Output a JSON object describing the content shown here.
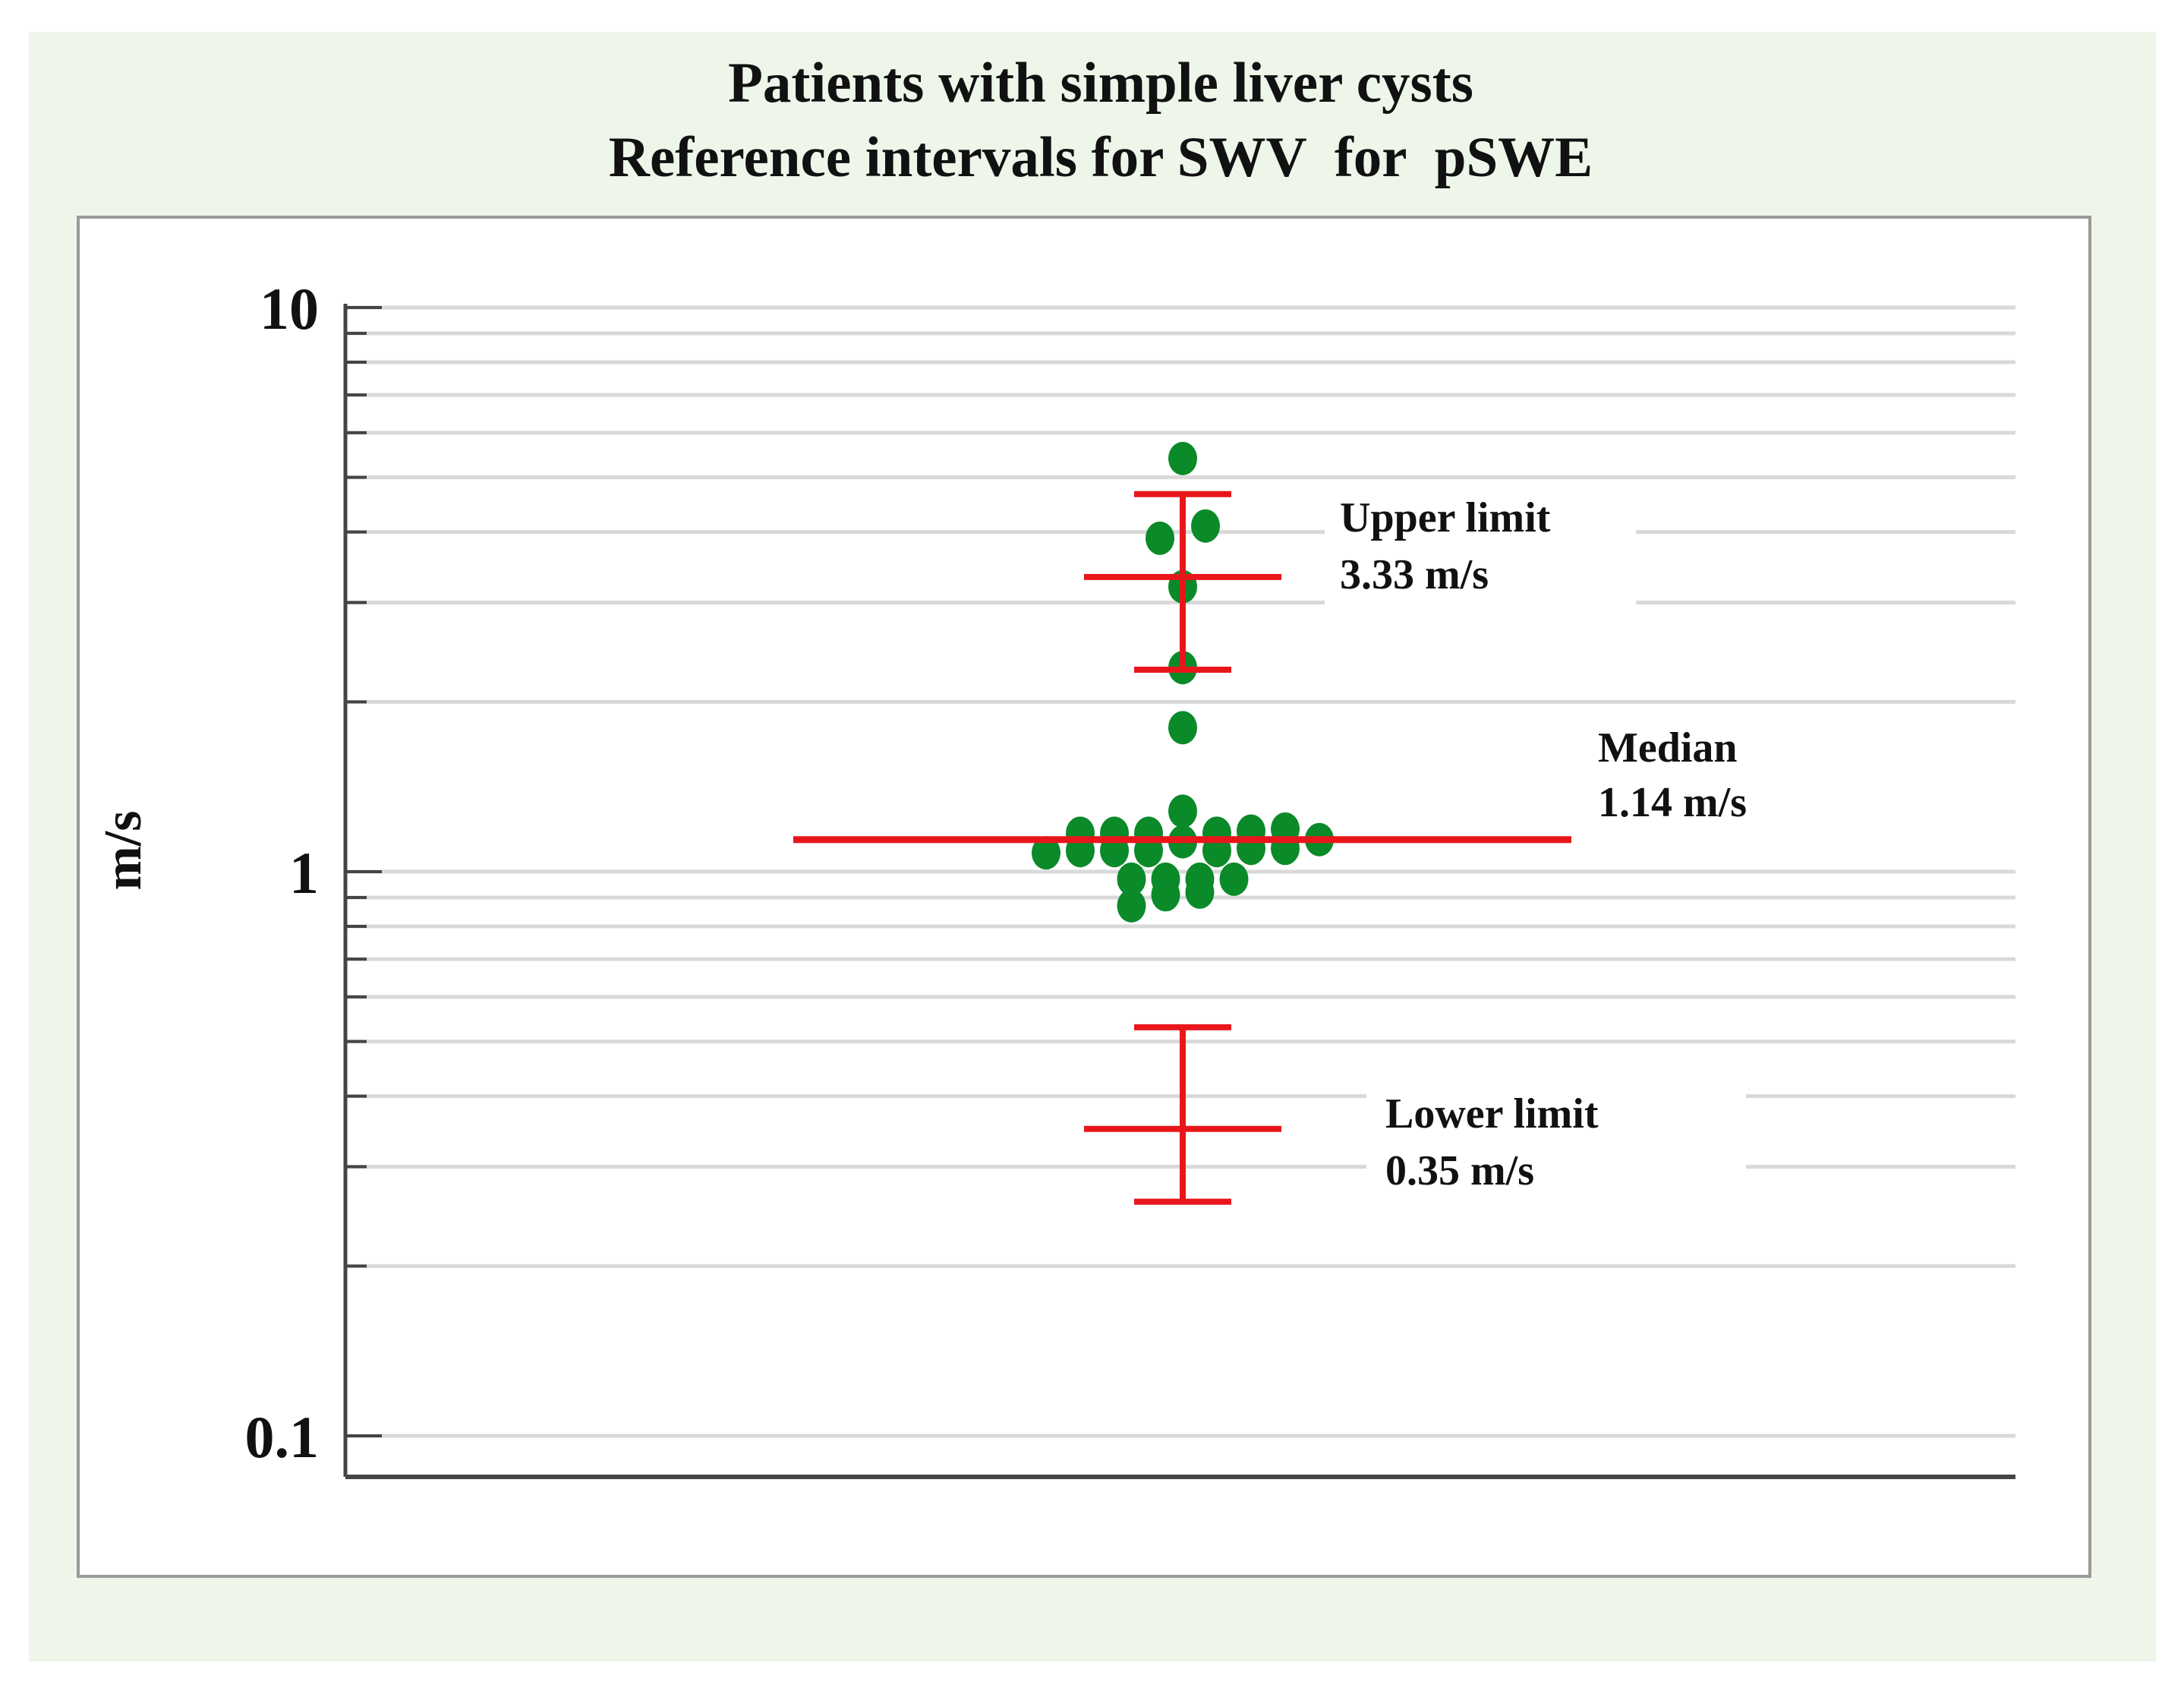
{
  "colors": {
    "background": "#ffffff",
    "frame_fill": "#edf6e9",
    "plot_fill": "#ffffff",
    "plot_border": "#9a9a9a",
    "gridline": "#d9d9d9",
    "axis": "#444444",
    "text": "#111111",
    "point": "#0b8a2a",
    "marker": "#e8161b"
  },
  "chart_data": {
    "type": "scatter",
    "title": "Patients with simple liver cysts",
    "subtitle": "Reference intervals for SWV  for  pSWE",
    "xlabel": "",
    "ylabel": "m/s",
    "yscale": "log",
    "ylim": [
      0.08,
      10
    ],
    "yticks": [
      {
        "value": 10,
        "label": "10"
      },
      {
        "value": 1,
        "label": "1"
      },
      {
        "value": 0.1,
        "label": "0.1"
      }
    ],
    "grid": true,
    "points": [
      {
        "x": 0,
        "y": 5.4
      },
      {
        "x": -0.2,
        "y": 3.9
      },
      {
        "x": 0.2,
        "y": 4.1
      },
      {
        "x": 0,
        "y": 3.2
      },
      {
        "x": 0,
        "y": 2.3
      },
      {
        "x": 0,
        "y": 1.8
      },
      {
        "x": 0,
        "y": 1.28
      },
      {
        "x": 0,
        "y": 1.13
      },
      {
        "x": -0.9,
        "y": 1.17
      },
      {
        "x": -0.6,
        "y": 1.17
      },
      {
        "x": -0.3,
        "y": 1.17
      },
      {
        "x": 0.3,
        "y": 1.17
      },
      {
        "x": 0.6,
        "y": 1.18
      },
      {
        "x": 0.9,
        "y": 1.19
      },
      {
        "x": 1.2,
        "y": 1.14
      },
      {
        "x": -1.2,
        "y": 1.08
      },
      {
        "x": -0.9,
        "y": 1.09
      },
      {
        "x": -0.6,
        "y": 1.09
      },
      {
        "x": -0.3,
        "y": 1.09
      },
      {
        "x": 0.3,
        "y": 1.09
      },
      {
        "x": 0.6,
        "y": 1.1
      },
      {
        "x": 0.9,
        "y": 1.1
      },
      {
        "x": -0.45,
        "y": 0.97
      },
      {
        "x": -0.15,
        "y": 0.97
      },
      {
        "x": 0.15,
        "y": 0.97
      },
      {
        "x": 0.45,
        "y": 0.97
      },
      {
        "x": -0.45,
        "y": 0.87
      },
      {
        "x": -0.15,
        "y": 0.91
      },
      {
        "x": 0.15,
        "y": 0.92
      }
    ],
    "median": {
      "value": 1.14,
      "label": "Median",
      "value_label": "1.14 m/s"
    },
    "upper_limit": {
      "value": 3.33,
      "ci": [
        2.28,
        4.67
      ],
      "label": "Upper limit",
      "value_label": "3.33 m/s"
    },
    "lower_limit": {
      "value": 0.35,
      "ci": [
        0.26,
        0.53
      ],
      "label": "Lower limit",
      "value_label": "0.35 m/s"
    }
  }
}
